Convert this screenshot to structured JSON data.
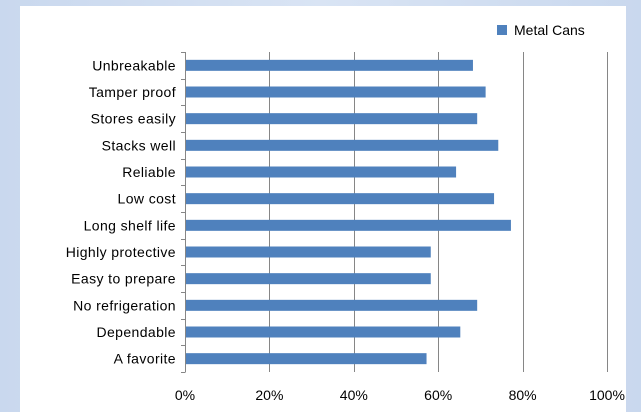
{
  "chart_data": {
    "type": "bar",
    "orientation": "horizontal",
    "title": "",
    "xlabel": "",
    "ylabel": "",
    "categories": [
      "Unbreakable",
      "Tamper proof",
      "Stores easily",
      "Stacks well",
      "Reliable",
      "Low cost",
      "Long shelf life",
      "Highly protective",
      "Easy to prepare",
      "No refrigeration",
      "Dependable",
      "A favorite"
    ],
    "series": [
      {
        "name": "Metal Cans",
        "color": "#4f81bd",
        "values": [
          68,
          71,
          69,
          74,
          64,
          73,
          77,
          58,
          58,
          69,
          65,
          57
        ]
      }
    ],
    "xlim": [
      0,
      100
    ],
    "x_ticks": [
      "0%",
      "20%",
      "40%",
      "60%",
      "80%",
      "100%"
    ],
    "grid": "vertical major gridlines",
    "legend_position": "top-right"
  }
}
